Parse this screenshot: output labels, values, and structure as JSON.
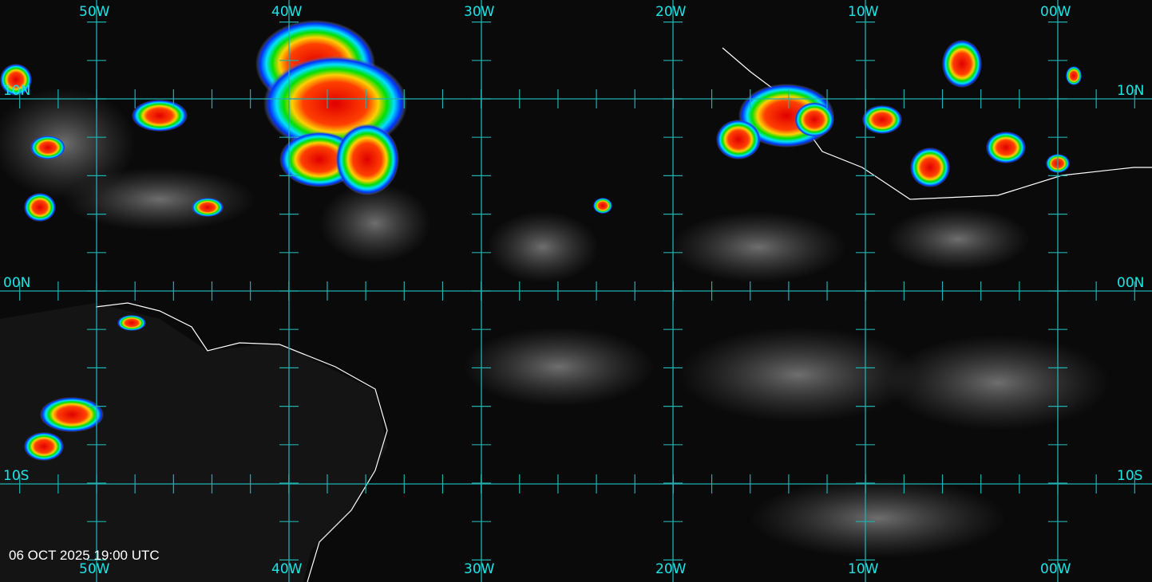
{
  "timestamp": "06 OCT 2025 19:00 UTC",
  "longitude_labels": [
    "50W",
    "40W",
    "30W",
    "20W",
    "10W",
    "00W"
  ],
  "latitude_labels": [
    "10N",
    "00N",
    "10S"
  ],
  "colors": {
    "grid": "#1fb0b0",
    "labels": "#19e6e6",
    "coastline": "#ffffff",
    "timestamp": "#ffffff"
  },
  "colorscale": [
    "#0000ff",
    "#00ffff",
    "#00ff00",
    "#ffff00",
    "#ff8000",
    "#ff0000"
  ]
}
